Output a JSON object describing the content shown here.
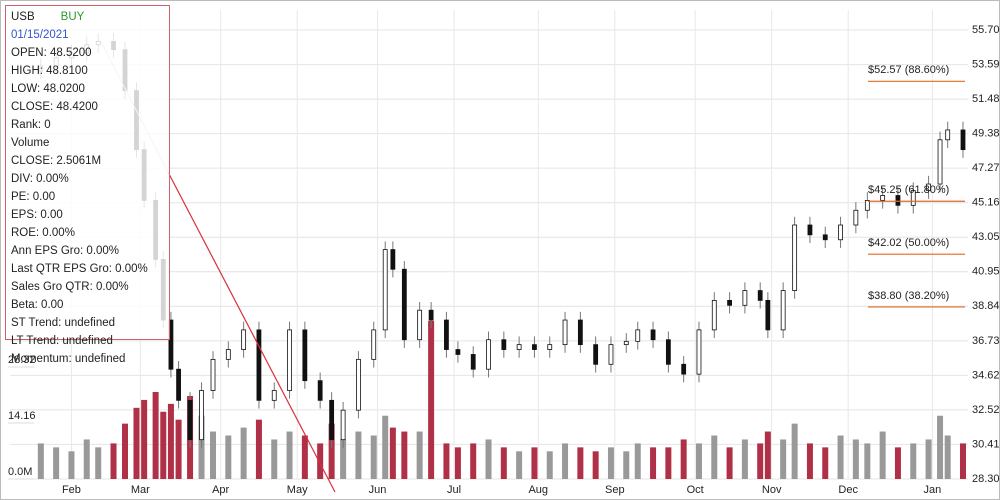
{
  "chart_data": {
    "type": "candlestick",
    "x": [
      1,
      5,
      9,
      13,
      16,
      20,
      23,
      26,
      28,
      31,
      33,
      35,
      37,
      40,
      43,
      46,
      50,
      54,
      58,
      62,
      66,
      70,
      74,
      77,
      80,
      84,
      88,
      91,
      93,
      96,
      100,
      103,
      107,
      110,
      114,
      118,
      122,
      126,
      130,
      134,
      138,
      142,
      146,
      150,
      154,
      157,
      161,
      165,
      169,
      173,
      177,
      181,
      185,
      189,
      191,
      195,
      198,
      202,
      206,
      210,
      214,
      217,
      221,
      225,
      229,
      233,
      236,
      238,
      242
    ],
    "open": [
      53.2,
      53.5,
      54.0,
      54.3,
      54.8,
      55.0,
      54.5,
      52.0,
      48.4,
      45.3,
      41.7,
      38.0,
      35.0,
      33.1,
      30.7,
      33.7,
      35.6,
      36.2,
      37.4,
      33.1,
      33.7,
      37.4,
      34.3,
      33.1,
      30.7,
      32.5,
      35.6,
      37.4,
      42.3,
      41.1,
      36.8,
      38.6,
      38.0,
      36.2,
      35.9,
      35.0,
      36.8,
      36.2,
      36.5,
      36.2,
      36.5,
      38.0,
      36.5,
      35.3,
      36.5,
      36.7,
      37.4,
      36.8,
      35.3,
      34.7,
      37.4,
      39.2,
      38.9,
      39.8,
      39.2,
      37.4,
      39.8,
      43.8,
      43.2,
      42.9,
      43.8,
      44.7,
      45.3,
      45.6,
      45.0,
      45.9,
      46.3,
      49.0,
      49.6
    ],
    "high": [
      54.0,
      54.5,
      54.8,
      55.3,
      55.5,
      55.5,
      55.0,
      52.5,
      48.9,
      45.8,
      42.2,
      38.5,
      35.5,
      33.6,
      34.2,
      36.1,
      36.7,
      37.9,
      37.9,
      34.2,
      37.9,
      37.9,
      34.8,
      33.6,
      33.0,
      36.1,
      37.9,
      42.8,
      42.8,
      41.6,
      39.1,
      39.1,
      38.5,
      36.7,
      36.4,
      37.3,
      37.3,
      37.0,
      37.0,
      37.0,
      38.5,
      38.5,
      37.0,
      37.0,
      37.2,
      37.9,
      37.9,
      37.3,
      35.8,
      37.9,
      39.7,
      39.7,
      40.3,
      40.3,
      39.7,
      40.3,
      44.3,
      44.3,
      43.7,
      44.3,
      45.2,
      45.8,
      46.1,
      46.1,
      46.4,
      46.8,
      49.5,
      50.1,
      50.1
    ],
    "low": [
      52.7,
      53.0,
      53.5,
      53.8,
      54.3,
      54.0,
      51.5,
      47.9,
      44.8,
      41.2,
      37.5,
      34.5,
      32.6,
      30.2,
      30.2,
      33.2,
      35.1,
      35.7,
      32.6,
      32.6,
      33.2,
      33.8,
      32.6,
      30.2,
      30.2,
      32.0,
      35.1,
      36.9,
      40.6,
      36.3,
      36.3,
      37.5,
      35.7,
      35.4,
      34.5,
      34.5,
      35.7,
      35.7,
      35.7,
      35.7,
      36.0,
      36.0,
      34.8,
      34.8,
      36.0,
      36.2,
      36.3,
      34.8,
      34.2,
      34.2,
      36.9,
      38.4,
      38.4,
      38.7,
      36.9,
      36.9,
      39.3,
      42.7,
      42.4,
      42.4,
      43.3,
      44.2,
      44.8,
      44.5,
      44.5,
      45.4,
      45.8,
      48.5,
      47.9
    ],
    "close": [
      53.5,
      54.0,
      54.3,
      54.8,
      55.0,
      54.5,
      52.0,
      48.4,
      45.3,
      41.7,
      38.0,
      35.0,
      33.1,
      30.7,
      33.7,
      35.6,
      36.2,
      37.4,
      33.1,
      33.7,
      37.4,
      34.3,
      33.1,
      30.7,
      32.5,
      35.6,
      37.4,
      42.3,
      41.1,
      36.8,
      38.6,
      38.0,
      36.2,
      35.9,
      35.0,
      36.8,
      36.2,
      36.5,
      36.2,
      36.5,
      38.0,
      36.5,
      35.3,
      36.5,
      36.7,
      37.4,
      36.8,
      35.3,
      34.7,
      37.4,
      39.2,
      38.9,
      39.8,
      39.2,
      37.4,
      39.8,
      43.8,
      43.2,
      42.9,
      43.8,
      44.7,
      45.3,
      45.6,
      45.0,
      45.9,
      46.3,
      49.0,
      49.6,
      48.4
    ],
    "volume": [
      9,
      8,
      7,
      10,
      8,
      9,
      14,
      18,
      20,
      22,
      17,
      19,
      15,
      21,
      16,
      12,
      11,
      13,
      15,
      10,
      12,
      11,
      9,
      14,
      10,
      12,
      11,
      16,
      13,
      12,
      12,
      40,
      9,
      8,
      9,
      10,
      8,
      7,
      8,
      7,
      9,
      8,
      7,
      8,
      7,
      9,
      8,
      8,
      10,
      9,
      11,
      8,
      10,
      9,
      12,
      10,
      14,
      9,
      8,
      11,
      10,
      9,
      12,
      8,
      9,
      10,
      16,
      11,
      9
    ],
    "up_color": "#999999",
    "down_color": "#b03048",
    "xlim": [
      0,
      242
    ],
    "xticks": [
      {
        "value": 9,
        "label": "Feb"
      },
      {
        "value": 27,
        "label": "Mar"
      },
      {
        "value": 48,
        "label": "Apr"
      },
      {
        "value": 68,
        "label": "May"
      },
      {
        "value": 89,
        "label": "Jun"
      },
      {
        "value": 109,
        "label": "Jul"
      },
      {
        "value": 131,
        "label": "Aug"
      },
      {
        "value": 151,
        "label": "Sep"
      },
      {
        "value": 172,
        "label": "Oct"
      },
      {
        "value": 192,
        "label": "Nov"
      },
      {
        "value": 212,
        "label": "Dec"
      },
      {
        "value": 234,
        "label": "Jan"
      }
    ],
    "ylim": [
      28.3,
      55.7
    ],
    "yticks": [
      {
        "value": 55.7,
        "label": "55.70"
      },
      53.59,
      51.48,
      49.38,
      47.27,
      45.16,
      43.05,
      40.95,
      38.84,
      36.73,
      34.62,
      32.52,
      30.41,
      {
        "value": 28.3,
        "label": "28.30"
      }
    ],
    "y2lim": [
      0,
      113.54
    ],
    "y2ticks": [
      {
        "value": 0,
        "label": "0.0M"
      },
      14.16,
      28.32
    ],
    "grid": true,
    "fib_color": "#e06a20",
    "fib_levels": [
      {
        "value": 52.57,
        "label": "$52.57 (88.60%)"
      },
      {
        "value": 45.25,
        "label": "$45.25 (61.80%)"
      },
      {
        "value": 42.02,
        "label": "$42.02 (50.00%)"
      },
      {
        "value": 38.8,
        "label": "$38.80 (38.20%)"
      }
    ]
  },
  "info_panel": {
    "symbol": "USB",
    "signal": "BUY",
    "date": "01/15/2021",
    "lines": [
      "OPEN: 48.5200",
      "HIGH: 48.8100",
      "LOW: 48.0200",
      "CLOSE: 48.4200",
      "Rank: 0",
      "Volume",
      "CLOSE: 2.5061M",
      "DIV: 0.00%",
      "PE: 0.00",
      "EPS: 0.00",
      "ROE: 0.00%",
      "Ann EPS Gro: 0.00%",
      "Last QTR EPS Gro: 0.00%",
      "Sales Gro QTR: 0.00%",
      "Beta: 0.00",
      "ST Trend: undefined",
      "LT Trend: undefined",
      "Momentum: undefined"
    ]
  }
}
